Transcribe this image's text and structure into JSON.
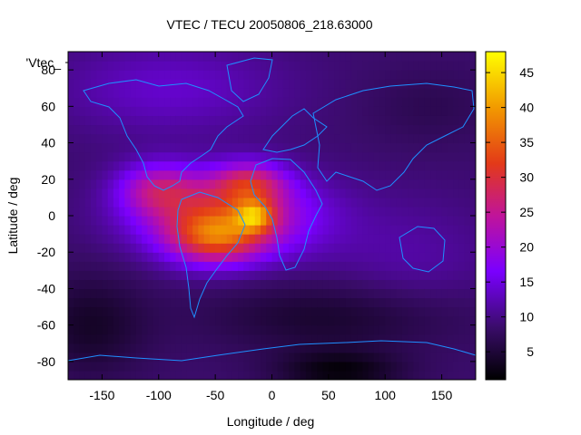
{
  "chart_data": {
    "type": "heatmap",
    "title": "VTEC / TECU 20050806_218.63000",
    "xlabel": "Longitude / deg",
    "ylabel": "Latitude / deg",
    "legend_label": "'Vtec_",
    "xlim": [
      -180,
      180
    ],
    "ylim": [
      -90,
      90
    ],
    "xticks": [
      -150,
      -100,
      -50,
      0,
      50,
      100,
      150
    ],
    "yticks": [
      -80,
      -60,
      -40,
      -20,
      0,
      20,
      40,
      60,
      80
    ],
    "colorbar": {
      "range": [
        1,
        48
      ],
      "ticks": [
        5,
        10,
        15,
        20,
        25,
        30,
        35,
        40,
        45
      ],
      "position": "right"
    },
    "colormap": [
      "#000000",
      "#3a0c6a",
      "#7a00ff",
      "#c0149a",
      "#e33a18",
      "#f29a00",
      "#ffff00"
    ],
    "coastline_color": "#1e90ff",
    "grid_resolution_deg": [
      5,
      5
    ],
    "field": {
      "background": 9,
      "features": [
        {
          "lon": -40,
          "lat": 0,
          "sigma_lon": 55,
          "sigma_lat": 16,
          "peak": 18
        },
        {
          "lon": -50,
          "lat": -12,
          "sigma_lon": 28,
          "sigma_lat": 10,
          "peak": 16
        },
        {
          "lon": -20,
          "lat": 18,
          "sigma_lon": 22,
          "sigma_lat": 8,
          "peak": 14
        },
        {
          "lon": -15,
          "lat": 0,
          "sigma_lon": 12,
          "sigma_lat": 6,
          "peak": 16
        },
        {
          "lon": -100,
          "lat": 15,
          "sigma_lon": 25,
          "sigma_lat": 10,
          "peak": 12
        },
        {
          "lon": -90,
          "lat": 70,
          "sigma_lon": 70,
          "sigma_lat": 18,
          "peak": 5
        },
        {
          "lon": 120,
          "lat": -25,
          "sigma_lon": 55,
          "sigma_lat": 25,
          "peak": 3
        },
        {
          "lon": 60,
          "lat": -55,
          "sigma_lon": 80,
          "sigma_lat": 14,
          "peak": -5
        },
        {
          "lon": -160,
          "lat": -60,
          "sigma_lon": 35,
          "sigma_lat": 20,
          "peak": -5
        },
        {
          "lon": 60,
          "lat": -85,
          "sigma_lon": 40,
          "sigma_lat": 8,
          "peak": -7
        },
        {
          "lon": 140,
          "lat": 60,
          "sigma_lon": 40,
          "sigma_lat": 15,
          "peak": -2
        }
      ]
    }
  }
}
